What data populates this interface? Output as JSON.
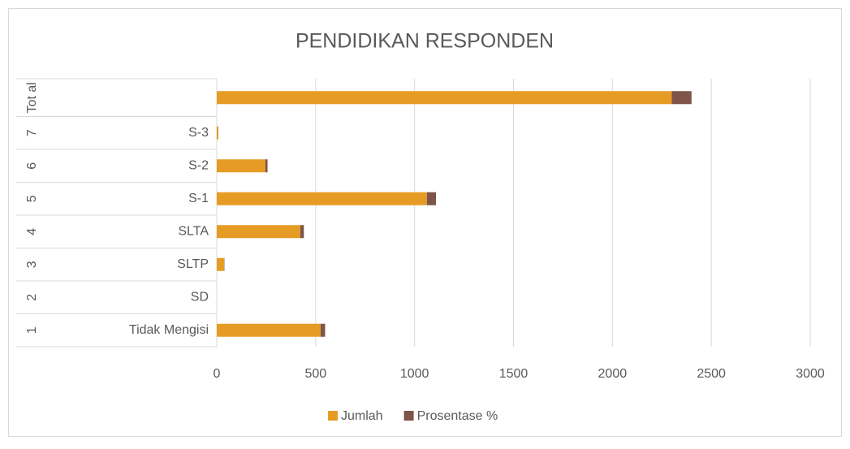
{
  "chart_data": {
    "type": "stacked_barh",
    "title": "PENDIDIKAN RESPONDEN",
    "category_groups": [
      "1",
      "2",
      "3",
      "4",
      "5",
      "6",
      "7",
      "Tot al"
    ],
    "categories": [
      "Tidak Mengisi",
      "SD",
      "SLTP",
      "SLTA",
      "S-1",
      "S-2",
      "S-3",
      null
    ],
    "series": [
      {
        "name": "Jumlah",
        "color": "#e69c24",
        "values": [
          525,
          0,
          37,
          422,
          1062,
          246,
          8,
          2300
        ]
      },
      {
        "name": "Prosentase %",
        "color": "#7f5549",
        "values": [
          22.8,
          0,
          1.6,
          18.3,
          46.2,
          10.7,
          0.3,
          100
        ]
      }
    ],
    "xlim": [
      0,
      3000
    ],
    "xticks": [
      0,
      500,
      1000,
      1500,
      2000,
      2500,
      3000
    ],
    "grid": true,
    "legend": "bottom"
  }
}
